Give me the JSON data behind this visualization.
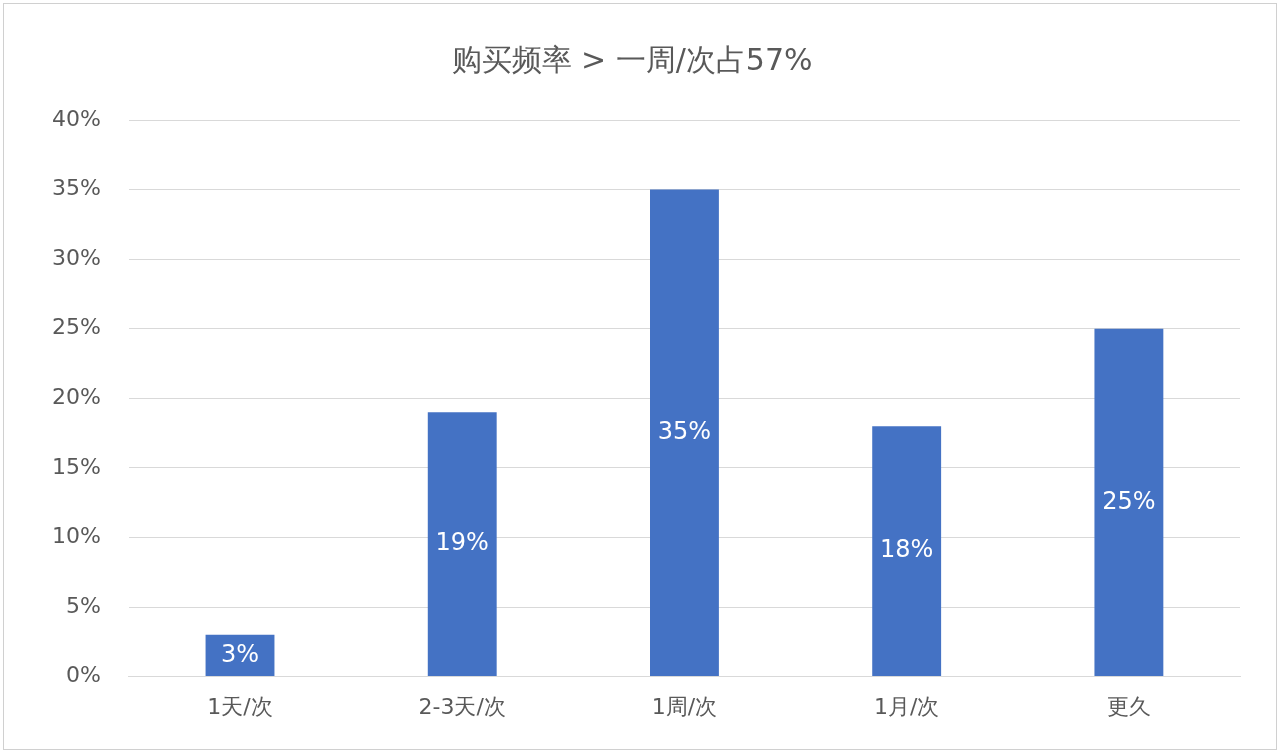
{
  "chart_data": {
    "type": "bar",
    "title": "购买频率 > 一周/次占57%",
    "categories": [
      "1天/次",
      "2-3天/次",
      "1周/次",
      "1月/次",
      "更久"
    ],
    "values": [
      3,
      19,
      35,
      18,
      25
    ],
    "value_labels": [
      "3%",
      "19%",
      "35%",
      "18%",
      "25%"
    ],
    "color": "#4472c4",
    "ylim": [
      0,
      40
    ],
    "yticks": [
      {
        "value": 0,
        "label": "0%"
      },
      {
        "value": 5,
        "label": "5%"
      },
      {
        "value": 10,
        "label": "10%"
      },
      {
        "value": 15,
        "label": "15%"
      },
      {
        "value": 20,
        "label": "20%"
      },
      {
        "value": 25,
        "label": "25%"
      },
      {
        "value": 30,
        "label": "30%"
      },
      {
        "value": 35,
        "label": "35%"
      },
      {
        "value": 40,
        "label": "40%"
      }
    ],
    "grid": "y"
  }
}
